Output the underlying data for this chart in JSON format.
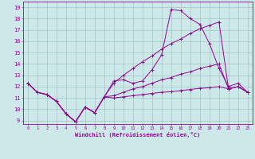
{
  "xlabel": "Windchill (Refroidissement éolien,°C)",
  "bg_color": "#cce8e8",
  "line_color": "#990099",
  "grid_color": "#99bbbb",
  "xlim_min": -0.5,
  "xlim_max": 23.5,
  "ylim_min": 8.7,
  "ylim_max": 19.5,
  "xticks": [
    0,
    1,
    2,
    3,
    4,
    5,
    6,
    7,
    8,
    9,
    10,
    11,
    12,
    13,
    14,
    15,
    16,
    17,
    18,
    19,
    20,
    21,
    22,
    23
  ],
  "yticks": [
    9,
    10,
    11,
    12,
    13,
    14,
    15,
    16,
    17,
    18,
    19
  ],
  "line1_x": [
    0,
    1,
    2,
    3,
    4,
    5,
    6,
    7,
    8,
    9,
    10,
    11,
    12,
    13,
    14,
    15,
    16,
    17,
    18,
    19,
    20,
    21,
    22,
    23
  ],
  "line1_y": [
    12.3,
    11.5,
    11.3,
    10.7,
    9.6,
    8.9,
    10.2,
    9.7,
    11.1,
    12.5,
    12.6,
    12.3,
    12.5,
    13.5,
    14.8,
    18.8,
    18.7,
    18.0,
    17.5,
    15.8,
    13.6,
    12.0,
    12.3,
    11.5
  ],
  "line2_x": [
    0,
    1,
    2,
    3,
    4,
    5,
    6,
    7,
    8,
    9,
    10,
    11,
    12,
    13,
    14,
    15,
    16,
    17,
    18,
    19,
    20,
    21,
    22,
    23
  ],
  "line2_y": [
    12.3,
    11.5,
    11.3,
    10.7,
    9.6,
    8.9,
    10.2,
    9.7,
    11.1,
    12.3,
    13.0,
    13.6,
    14.2,
    14.7,
    15.3,
    15.8,
    16.2,
    16.7,
    17.1,
    17.4,
    17.7,
    11.8,
    12.0,
    11.5
  ],
  "line3_x": [
    0,
    1,
    2,
    3,
    4,
    5,
    6,
    7,
    8,
    9,
    10,
    11,
    12,
    13,
    14,
    15,
    16,
    17,
    18,
    19,
    20,
    21,
    22,
    23
  ],
  "line3_y": [
    12.3,
    11.5,
    11.3,
    10.7,
    9.6,
    8.9,
    10.2,
    9.7,
    11.1,
    11.2,
    11.5,
    11.8,
    12.0,
    12.3,
    12.6,
    12.8,
    13.1,
    13.3,
    13.6,
    13.8,
    14.0,
    11.8,
    12.0,
    11.5
  ],
  "line4_x": [
    0,
    1,
    2,
    3,
    4,
    5,
    6,
    7,
    8,
    9,
    10,
    11,
    12,
    13,
    14,
    15,
    16,
    17,
    18,
    19,
    20,
    21,
    22,
    23
  ],
  "line4_y": [
    12.3,
    11.5,
    11.3,
    10.7,
    9.6,
    8.9,
    10.2,
    9.7,
    11.1,
    11.0,
    11.1,
    11.2,
    11.3,
    11.4,
    11.5,
    11.55,
    11.65,
    11.75,
    11.85,
    11.9,
    12.0,
    11.8,
    12.0,
    11.5
  ]
}
